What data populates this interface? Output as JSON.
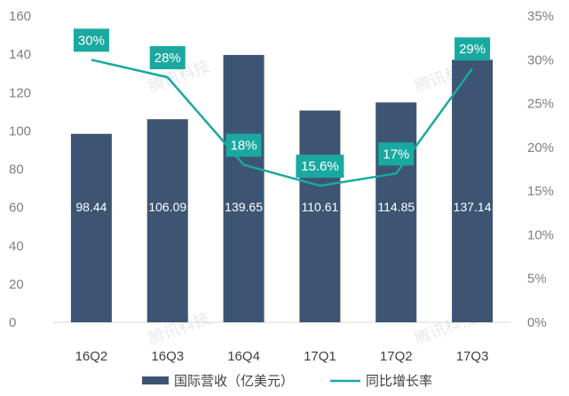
{
  "chart_data": {
    "type": "bar",
    "categories": [
      "16Q2",
      "16Q3",
      "16Q4",
      "17Q1",
      "17Q2",
      "17Q3"
    ],
    "series": [
      {
        "name": "国际营收（亿美元）",
        "type": "bar",
        "axis": "left",
        "values": [
          98.44,
          106.09,
          139.65,
          110.61,
          114.85,
          137.14
        ],
        "labels": [
          "98.44",
          "106.09",
          "139.65",
          "110.61",
          "114.85",
          "137.14"
        ],
        "color": "#3d5573"
      },
      {
        "name": "同比增长率",
        "type": "line",
        "axis": "right",
        "values": [
          30,
          28,
          18,
          15.6,
          17,
          29
        ],
        "labels": [
          "30%",
          "28%",
          "18%",
          "15.6%",
          "17%",
          "29%"
        ],
        "color": "#1aa9a0"
      }
    ],
    "y_left": {
      "min": 0,
      "max": 160,
      "step": 20,
      "ticks": [
        "0",
        "20",
        "40",
        "60",
        "80",
        "100",
        "120",
        "140",
        "160"
      ]
    },
    "y_right": {
      "min": 0,
      "max": 35,
      "step": 5,
      "ticks": [
        "0%",
        "5%",
        "10%",
        "15%",
        "20%",
        "25%",
        "30%",
        "35%"
      ]
    },
    "grid": false,
    "legend": "bottom"
  },
  "watermark": "腾讯科技"
}
